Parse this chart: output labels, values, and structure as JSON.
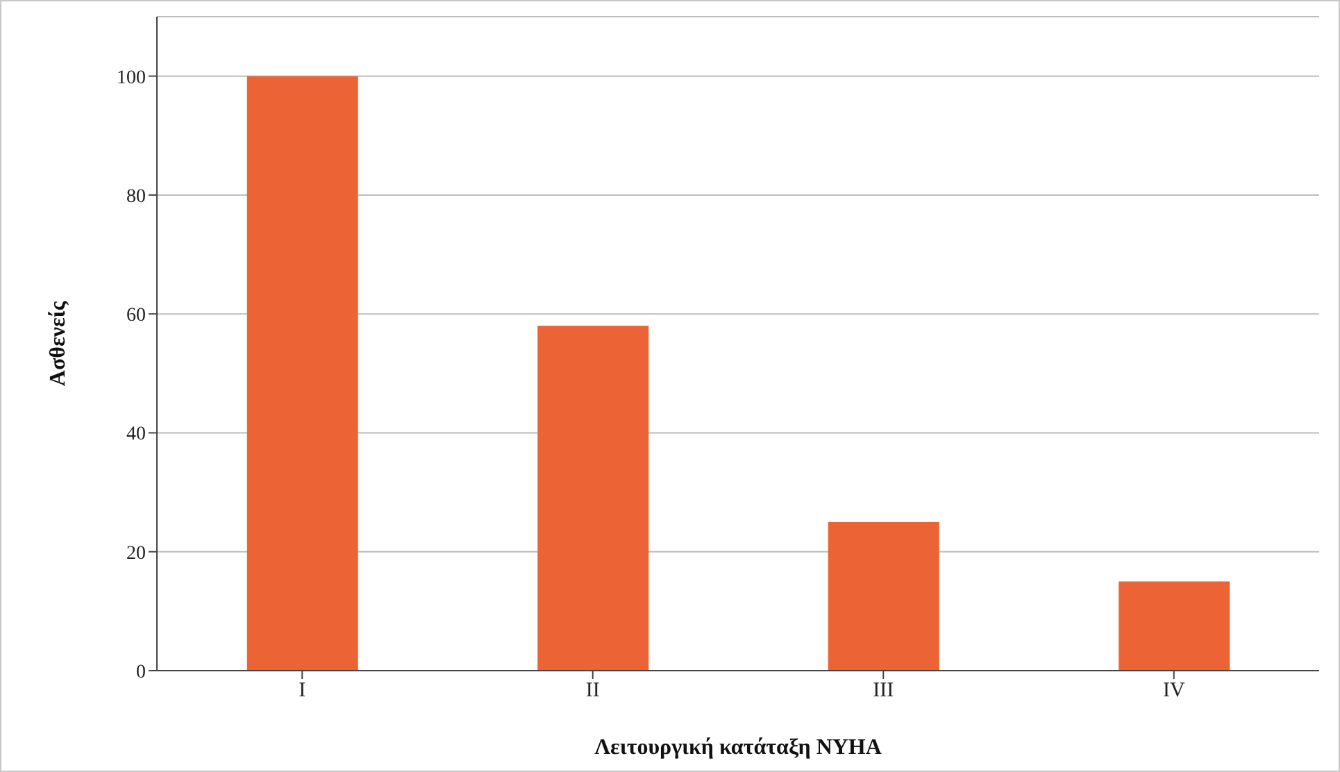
{
  "chart_data": {
    "type": "bar",
    "xlabel": "Λειτουργική κατάταξη NYHA",
    "ylabel": "Ασθενείς",
    "categories": [
      "I",
      "II",
      "III",
      "IV"
    ],
    "values": [
      100,
      58,
      25,
      15
    ],
    "color": "#ec6436",
    "ylim": [
      0,
      110
    ],
    "yticks": [
      0,
      20,
      40,
      60,
      80,
      100
    ],
    "grid": "y"
  }
}
